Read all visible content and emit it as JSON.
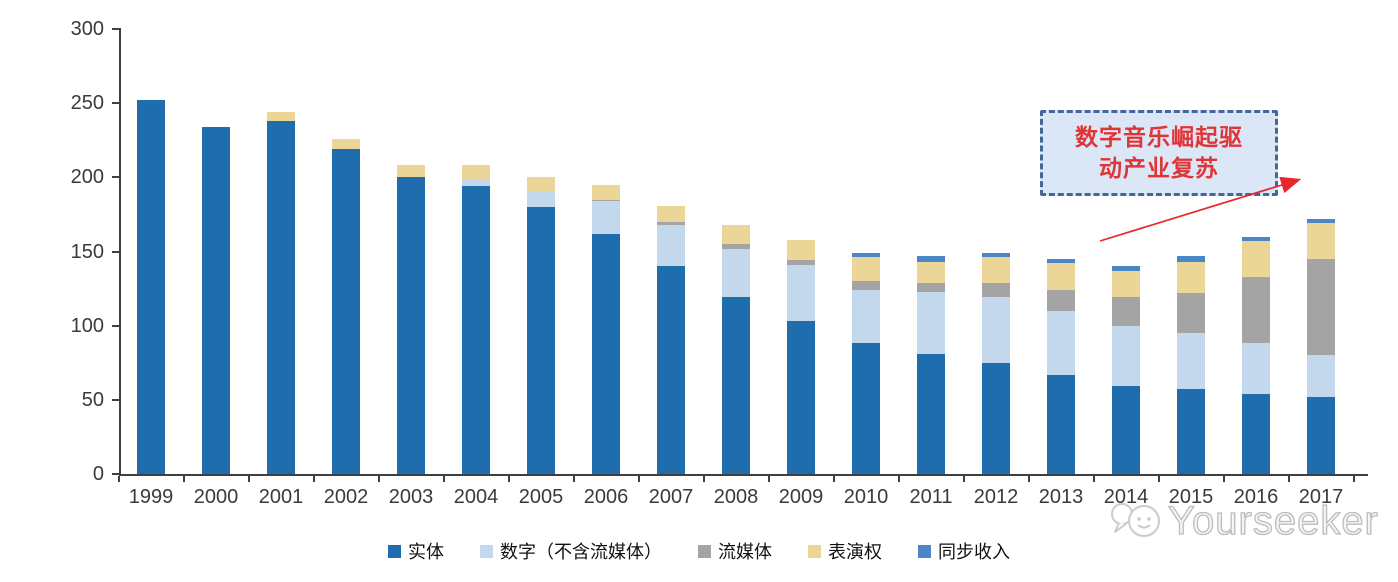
{
  "chart_data": {
    "type": "bar",
    "stacked": true,
    "title": "",
    "xlabel": "",
    "ylabel": "",
    "categories": [
      "1999",
      "2000",
      "2001",
      "2002",
      "2003",
      "2004",
      "2005",
      "2006",
      "2007",
      "2008",
      "2009",
      "2010",
      "2011",
      "2012",
      "2013",
      "2014",
      "2015",
      "2016",
      "2017"
    ],
    "series": [
      {
        "name": "实体",
        "color": "#1F6DAC",
        "values": [
          252,
          234,
          238,
          219,
          200,
          194,
          180,
          162,
          140,
          119,
          103,
          88,
          81,
          75,
          67,
          59,
          57,
          54,
          52
        ]
      },
      {
        "name": "数字（不含流媒体）",
        "color": "#C3D8ED",
        "values": [
          0,
          0,
          0,
          0,
          0,
          5,
          11,
          22,
          28,
          33,
          38,
          36,
          42,
          44,
          43,
          41,
          38,
          34,
          28
        ]
      },
      {
        "name": "流媒体",
        "color": "#A5A4A4",
        "values": [
          0,
          0,
          0,
          0,
          0,
          0,
          0,
          1,
          2,
          3,
          3,
          6,
          6,
          10,
          14,
          19,
          27,
          45,
          65
        ]
      },
      {
        "name": "表演权",
        "color": "#EBD697",
        "values": [
          0,
          0,
          6,
          7,
          8,
          9,
          9,
          10,
          11,
          13,
          14,
          16,
          14,
          17,
          18,
          18,
          21,
          24,
          24
        ]
      },
      {
        "name": "同步收入",
        "color": "#4A86C8",
        "values": [
          0,
          0,
          0,
          0,
          0,
          0,
          0,
          0,
          0,
          0,
          0,
          3,
          4,
          3,
          3,
          3,
          4,
          3,
          3
        ]
      }
    ],
    "ylim": [
      0,
      300
    ],
    "ytick_step": 50,
    "y_tick_labels": [
      "0",
      "50",
      "100",
      "150",
      "200",
      "250",
      "300"
    ],
    "grid": false,
    "legend_position": "bottom"
  },
  "annotation": {
    "line1": "数字音乐崛起驱",
    "line2": "动产业复苏",
    "text_color": "#e03536",
    "box_fill": "#dbe7f6",
    "box_border": "#44679b",
    "arrow_color": "#e8272c"
  },
  "watermark": {
    "text": "Yourseeker"
  },
  "axis_color": "#3f3f3f"
}
